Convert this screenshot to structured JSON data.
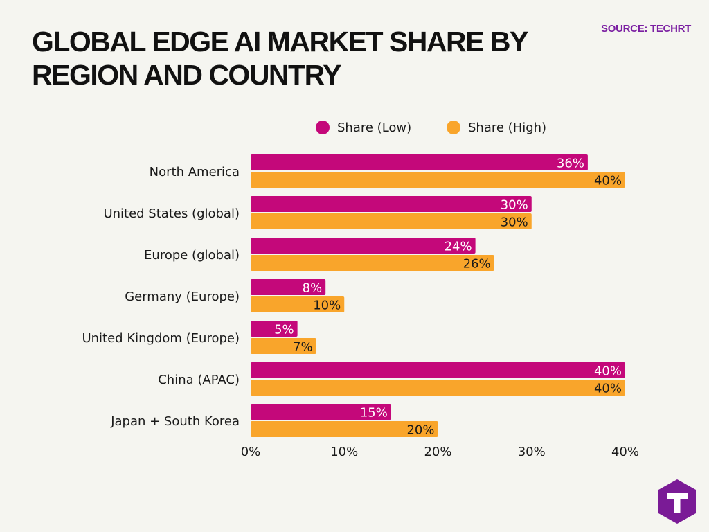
{
  "title": "GLOBAL EDGE AI MARKET SHARE BY REGION AND COUNTRY",
  "source": "SOURCE: TECHRT",
  "colors": {
    "low": "#c4087a",
    "high": "#f9a52b",
    "source_text": "#7b1fa2",
    "logo": "#7a1b96",
    "text": "#1a1a1a"
  },
  "logo_icon": "techrt-t-logo",
  "chart_data": {
    "type": "bar",
    "orientation": "horizontal",
    "title": "GLOBAL EDGE AI MARKET SHARE BY REGION AND COUNTRY",
    "xlabel": "",
    "ylabel": "",
    "categories": [
      "North America",
      "United States (global)",
      "Europe (global)",
      "Germany (Europe)",
      "United Kingdom (Europe)",
      "China (APAC)",
      "Japan + South Korea"
    ],
    "series": [
      {
        "name": "Share (Low)",
        "color": "#c4087a",
        "values": [
          36,
          30,
          24,
          8,
          5,
          40,
          15
        ]
      },
      {
        "name": "Share (High)",
        "color": "#f9a52b",
        "values": [
          40,
          30,
          26,
          10,
          7,
          40,
          20
        ]
      }
    ],
    "value_suffix": "%",
    "xlim": [
      0,
      40
    ],
    "xticks": [
      0,
      10,
      20,
      30,
      40
    ],
    "xtick_labels": [
      "0%",
      "10%",
      "20%",
      "30%",
      "40%"
    ],
    "grid": false,
    "legend_position": "top"
  }
}
